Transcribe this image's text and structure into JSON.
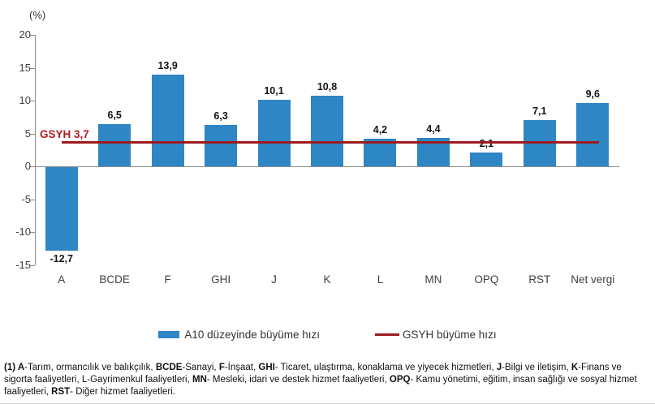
{
  "chart_data": {
    "type": "bar",
    "title": "",
    "unit_label": "(%)",
    "categories": [
      "A",
      "BCDE",
      "F",
      "GHI",
      "J",
      "K",
      "L",
      "MN",
      "OPQ",
      "RST",
      "Net vergi"
    ],
    "series": [
      {
        "name": "A10 düzeyinde büyüme hızı",
        "type": "bar",
        "color": "#2E86C4",
        "values": [
          -12.7,
          6.5,
          13.9,
          6.3,
          10.1,
          10.8,
          4.2,
          4.4,
          2.1,
          7.1,
          9.6
        ],
        "value_labels": [
          "-12,7",
          "6,5",
          "13,9",
          "6,3",
          "10,1",
          "10,8",
          "4,2",
          "4,4",
          "2,1",
          "7,1",
          "9,6"
        ]
      },
      {
        "name": "GSYH büyüme hızı",
        "type": "line",
        "color": "#9C1B1E",
        "value": 3.7,
        "annotation": "GSYH 3,7"
      }
    ],
    "y_ticks": [
      20,
      15,
      10,
      5,
      0,
      -5,
      -10,
      -15
    ],
    "ylim": [
      -15,
      20
    ],
    "grid": false,
    "legend_position": "bottom"
  },
  "annotations": {
    "unit_label": "(%)",
    "gsyh_label": "GSYH 3,7"
  },
  "legend": {
    "bar_label": "A10 düzeyinde büyüme hızı",
    "line_label": "GSYH büyüme hızı"
  },
  "footnote": {
    "segments": [
      {
        "t": "(1) A",
        "b": true
      },
      {
        "t": "-Tarım, ormancılık ve balıkçılık, ",
        "b": false
      },
      {
        "t": "BCDE",
        "b": true
      },
      {
        "t": "-Sanayi, ",
        "b": false
      },
      {
        "t": "F",
        "b": true
      },
      {
        "t": "-İnşaat, ",
        "b": false
      },
      {
        "t": "GHI",
        "b": true
      },
      {
        "t": "- Ticaret, ulaştırma, konaklama ve yiyecek hizmetleri, ",
        "b": false
      },
      {
        "t": "J",
        "b": true
      },
      {
        "t": "-Bilgi ve iletişim, ",
        "b": false
      },
      {
        "t": "K",
        "b": true
      },
      {
        "t": "-Finans ve sigorta faaliyetleri, L-Gayrimenkul faaliyetleri, ",
        "b": false
      },
      {
        "t": "MN",
        "b": true
      },
      {
        "t": "- Mesleki, idari ve destek hizmet faaliyetleri, ",
        "b": false
      },
      {
        "t": "OPQ",
        "b": true
      },
      {
        "t": "- Kamu yönetimi, eğitim, insan sağlığı ve sosyal hizmet faaliyetleri, ",
        "b": false
      },
      {
        "t": "RST",
        "b": true
      },
      {
        "t": "- Diğer hizmet faaliyetleri.",
        "b": false
      }
    ]
  }
}
